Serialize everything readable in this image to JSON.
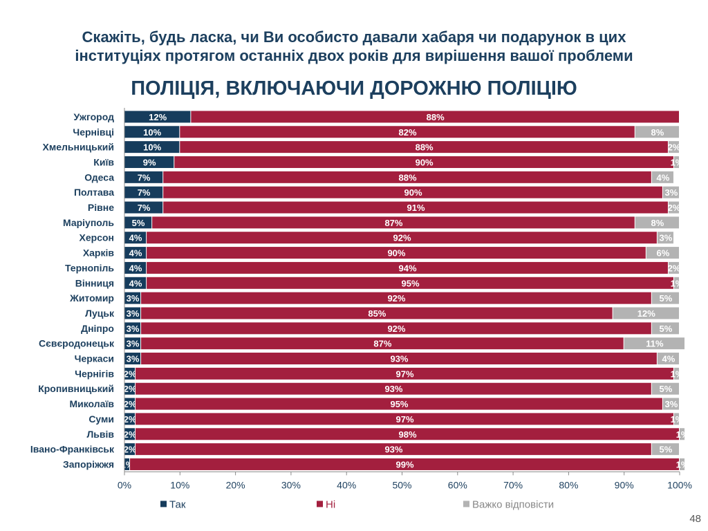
{
  "title_line1": "Скажіть, будь ласка, чи Ви особисто давали хабаря чи подарунок в цих",
  "title_line2": "інституціях протягом останніх двох років для вирішення вашої проблеми",
  "subtitle": "ПОЛІЦІЯ, ВКЛЮЧАЮЧИ ДОРОЖНЮ ПОЛІЦІЮ",
  "page_number": "48",
  "colors": {
    "yes": "#163c5c",
    "no": "#a31f3e",
    "hard": "#b3b3b3",
    "label": "#1c3f5e"
  },
  "chart_data": {
    "type": "bar",
    "orientation": "horizontal",
    "stacked": true,
    "percent": true,
    "categories": [
      "Ужгород",
      "Чернівці",
      "Хмельницький",
      "Київ",
      "Одеса",
      "Полтава",
      "Рівне",
      "Маріуполь",
      "Херсон",
      "Харків",
      "Тернопіль",
      "Вінниця",
      "Житомир",
      "Луцьк",
      "Дніпро",
      "Сєвєродонецьк",
      "Черкаси",
      "Чернігів",
      "Кропивницький",
      "Миколаїв",
      "Суми",
      "Львів",
      "Івано-Франківськ",
      "Запоріжжя"
    ],
    "series": [
      {
        "name": "Так",
        "color": "#163c5c",
        "values": [
          12,
          10,
          10,
          9,
          7,
          7,
          7,
          5,
          4,
          4,
          4,
          4,
          3,
          3,
          3,
          3,
          3,
          2,
          2,
          2,
          2,
          2,
          2,
          1
        ],
        "labels": [
          "12%",
          "10%",
          "10%",
          "9%",
          "7%",
          "7%",
          "7%",
          "5%",
          "4%",
          "4%",
          "4%",
          "4%",
          "3%",
          "3%",
          "3%",
          "3%",
          "3%",
          "2%",
          "2%",
          "2%",
          "2%",
          "2%",
          "2%",
          "1%"
        ]
      },
      {
        "name": "Ні",
        "color": "#a31f3e",
        "values": [
          88,
          82,
          88,
          90,
          88,
          90,
          91,
          87,
          92,
          90,
          94,
          95,
          92,
          85,
          92,
          87,
          93,
          97,
          93,
          95,
          97,
          98,
          93,
          99
        ],
        "labels": [
          "88%",
          "82%",
          "88%",
          "90%",
          "88%",
          "90%",
          "91%",
          "87%",
          "92%",
          "90%",
          "94%",
          "95%",
          "92%",
          "85%",
          "92%",
          "87%",
          "93%",
          "97%",
          "93%",
          "95%",
          "97%",
          "98%",
          "93%",
          "99%"
        ]
      },
      {
        "name": "Важко відповісти",
        "color": "#b3b3b3",
        "values": [
          0,
          8,
          2,
          1,
          4,
          3,
          2,
          8,
          3,
          6,
          2,
          1,
          5,
          12,
          5,
          11,
          4,
          1,
          5,
          3,
          1,
          1,
          5,
          1
        ],
        "labels": [
          "",
          "8%",
          "2%",
          "1%",
          "4%",
          "3%",
          "2%",
          "8%",
          "3%",
          "6%",
          "2%",
          "1%",
          "5%",
          "12%",
          "5%",
          "11%",
          "4%",
          "1%",
          "5%",
          "3%",
          "1%",
          "1%",
          "5%",
          "1%"
        ]
      }
    ],
    "xlim": [
      0,
      100
    ],
    "xticks": [
      "0%",
      "10%",
      "20%",
      "30%",
      "40%",
      "50%",
      "60%",
      "70%",
      "80%",
      "90%",
      "100%"
    ],
    "legend_position": "bottom",
    "grid": false
  }
}
